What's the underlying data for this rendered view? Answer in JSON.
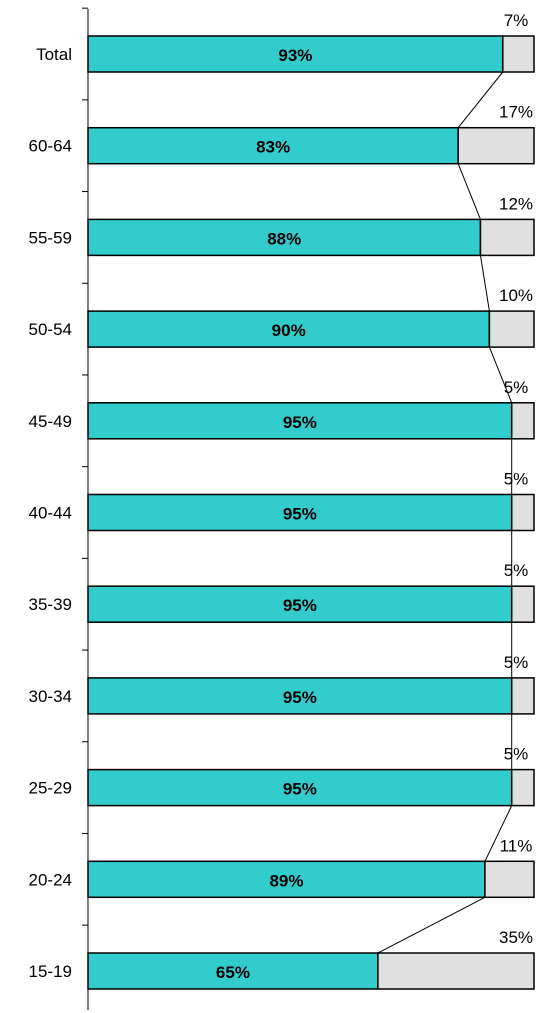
{
  "chart_data": {
    "type": "bar",
    "orientation": "horizontal",
    "stacked": true,
    "normalized_100": true,
    "categories": [
      "Total",
      "60-64",
      "55-59",
      "50-54",
      "45-49",
      "40-44",
      "35-39",
      "30-34",
      "25-29",
      "20-24",
      "15-19"
    ],
    "series": [
      {
        "values": [
          93,
          83,
          88,
          90,
          95,
          95,
          95,
          95,
          95,
          89,
          65
        ],
        "labels": [
          "93%",
          "83%",
          "88%",
          "90%",
          "95%",
          "95%",
          "95%",
          "95%",
          "95%",
          "89%",
          "65%"
        ],
        "color": "#33cccc"
      },
      {
        "values": [
          7,
          17,
          12,
          10,
          5,
          5,
          5,
          5,
          5,
          11,
          35
        ],
        "labels": [
          "7%",
          "17%",
          "12%",
          "10%",
          "5%",
          "5%",
          "5%",
          "5%",
          "5%",
          "11%",
          "35%"
        ],
        "color": "#e0e0e0"
      }
    ],
    "series_lines": true,
    "grid": false,
    "legend": "none",
    "xlim": [
      0,
      100
    ]
  }
}
